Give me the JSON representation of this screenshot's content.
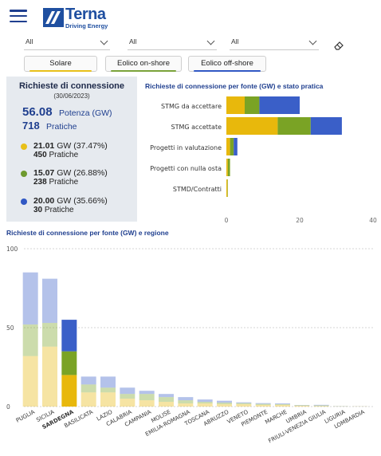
{
  "brand": {
    "name": "Terna",
    "tagline": "Driving Energy"
  },
  "filters": [
    {
      "value": "All"
    },
    {
      "value": "All"
    },
    {
      "value": "All"
    }
  ],
  "tabs": [
    {
      "label": "Solare",
      "color": "#e8c01a"
    },
    {
      "label": "Eolico on-shore",
      "color": "#7aa33a"
    },
    {
      "label": "Eolico off-shore",
      "color": "#3158c4"
    }
  ],
  "kpi": {
    "title": "Richieste di connessione",
    "date": "(30/06/2023)",
    "total_gw": "56.08",
    "total_gw_label": "Potenza (GW)",
    "total_pratiche": "718",
    "total_pratiche_label": "Pratiche",
    "sources": [
      {
        "gw": "21.01",
        "gw_text": "GW (37.47%)",
        "pratiche": "450",
        "pratiche_label": "Pratiche",
        "color": "#e8c01a"
      },
      {
        "gw": "15.07",
        "gw_text": "GW (26.88%)",
        "pratiche": "238",
        "pratiche_label": "Pratiche",
        "color": "#6e9a2e"
      },
      {
        "gw": "20.00",
        "gw_text": "GW (35.66%)",
        "pratiche": "30",
        "pratiche_label": "Pratiche",
        "color": "#3158c4"
      }
    ]
  },
  "colors": {
    "solare": "#e8b80c",
    "onshore": "#7aa325",
    "offshore": "#3a5fc8"
  },
  "chart_data": [
    {
      "type": "bar",
      "orientation": "horizontal",
      "stacked": true,
      "title": "Richieste di connessione per fonte (GW) e stato pratica",
      "categories": [
        "STMG da accettare",
        "STMG accettate",
        "Progetti in valutazione",
        "Progetti con nulla osta",
        "STMD/Contratti"
      ],
      "series": [
        {
          "values": [
            5.0,
            14.0,
            1.0,
            0.4,
            0.3
          ]
        },
        {
          "values": [
            4.0,
            9.0,
            1.0,
            0.6,
            0.1
          ]
        },
        {
          "values": [
            11.0,
            8.5,
            1.0,
            0.0,
            0.0
          ]
        }
      ],
      "xlim": [
        0,
        40
      ],
      "xticks": [
        0,
        20,
        40
      ],
      "grid": false
    },
    {
      "type": "bar",
      "stacked": true,
      "title": "Richieste di connessione per fonte (GW) e regione",
      "categories": [
        "PUGLIA",
        "SICILIA",
        "SARDEGNA",
        "BASILICATA",
        "LAZIO",
        "CALABRIA",
        "CAMPANIA",
        "MOLISE",
        "EMILIA-ROMAGNA",
        "TOSCANA",
        "ABRUZZO",
        "VENETO",
        "PIEMONTE",
        "MARCHE",
        "UMBRIA",
        "FRIULI-VENEZIA GIULIA",
        "LIGURIA",
        "LOMBARDIA"
      ],
      "highlighted": "SARDEGNA",
      "series": [
        {
          "values": [
            32,
            38,
            20,
            9,
            9,
            5,
            4,
            3,
            2,
            2,
            1.5,
            1.5,
            1,
            1,
            0.5,
            0.3,
            0.1,
            0.1
          ]
        },
        {
          "values": [
            20,
            15,
            15,
            5,
            3,
            3,
            4,
            3,
            2,
            1,
            1,
            0.7,
            0.7,
            0.5,
            0.3,
            0.4,
            0.1,
            0.05
          ]
        },
        {
          "values": [
            33,
            28,
            20,
            5,
            7,
            4,
            2,
            2,
            2,
            1.5,
            1.2,
            0.5,
            0.5,
            0.5,
            0.2,
            0.4,
            0.1,
            0.05
          ]
        }
      ],
      "ylim": [
        0,
        100
      ],
      "yticks": [
        0,
        50,
        100
      ],
      "grid": true
    }
  ]
}
